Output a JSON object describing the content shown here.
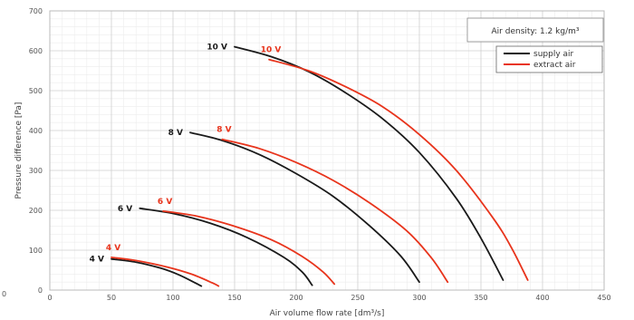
{
  "chart_data": {
    "type": "line",
    "xlabel": "Air volume flow rate [dm³/s]",
    "ylabel": "Pressure difference [Pa]",
    "xlim": [
      0,
      450
    ],
    "ylim": [
      0,
      700
    ],
    "xticks": [
      0,
      50,
      100,
      150,
      200,
      250,
      300,
      350,
      400,
      450
    ],
    "yticks": [
      0,
      100,
      200,
      300,
      400,
      500,
      600,
      700
    ],
    "grid": true,
    "left_edge_tick": "0",
    "annotation": "Air density: 1.2 kg/m³",
    "legend": {
      "placement": "top-right",
      "entries": [
        {
          "label": "supply air",
          "color": "#1a1a1a"
        },
        {
          "label": "extract air",
          "color": "#e8341c"
        }
      ]
    },
    "series": [
      {
        "label": "10 V",
        "legend": "supply air",
        "color": "#1a1a1a",
        "x": [
          150,
          180,
          210,
          240,
          270,
          300,
          330,
          350,
          368
        ],
        "y": [
          610,
          585,
          548,
          495,
          430,
          345,
          230,
          130,
          25
        ]
      },
      {
        "label": "10 V",
        "legend": "extract air",
        "color": "#e8341c",
        "x": [
          178,
          210,
          240,
          270,
          300,
          330,
          360,
          375,
          388
        ],
        "y": [
          578,
          550,
          510,
          460,
          390,
          300,
          180,
          105,
          25
        ]
      },
      {
        "label": "8 V",
        "legend": "supply air",
        "color": "#1a1a1a",
        "x": [
          114,
          140,
          170,
          200,
          230,
          260,
          285,
          300
        ],
        "y": [
          395,
          375,
          340,
          292,
          235,
          160,
          85,
          20
        ]
      },
      {
        "label": "8 V",
        "legend": "extract air",
        "color": "#e8341c",
        "x": [
          140,
          170,
          200,
          230,
          260,
          290,
          310,
          323
        ],
        "y": [
          378,
          355,
          320,
          275,
          218,
          148,
          80,
          20
        ]
      },
      {
        "label": "6 V",
        "legend": "supply air",
        "color": "#1a1a1a",
        "x": [
          73,
          100,
          130,
          160,
          190,
          205,
          213
        ],
        "y": [
          205,
          192,
          168,
          132,
          82,
          45,
          12
        ]
      },
      {
        "label": "6 V",
        "legend": "extract air",
        "color": "#e8341c",
        "x": [
          92,
          120,
          150,
          180,
          205,
          222,
          231
        ],
        "y": [
          198,
          185,
          160,
          126,
          84,
          45,
          15
        ]
      },
      {
        "label": "4 V",
        "legend": "supply air",
        "color": "#1a1a1a",
        "x": [
          50,
          70,
          90,
          105,
          118,
          123
        ],
        "y": [
          78,
          70,
          55,
          38,
          18,
          10
        ]
      },
      {
        "label": "4 V",
        "legend": "extract air",
        "color": "#e8341c",
        "x": [
          50,
          70,
          95,
          115,
          132,
          137
        ],
        "y": [
          82,
          74,
          58,
          40,
          18,
          10
        ]
      }
    ]
  }
}
